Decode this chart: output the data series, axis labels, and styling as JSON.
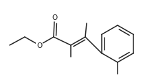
{
  "bg_color": "#ffffff",
  "line_color": "#222222",
  "line_width": 1.1,
  "figsize": [
    2.4,
    1.15
  ],
  "dpi": 100,
  "xlim": [
    0,
    240
  ],
  "ylim": [
    0,
    115
  ]
}
